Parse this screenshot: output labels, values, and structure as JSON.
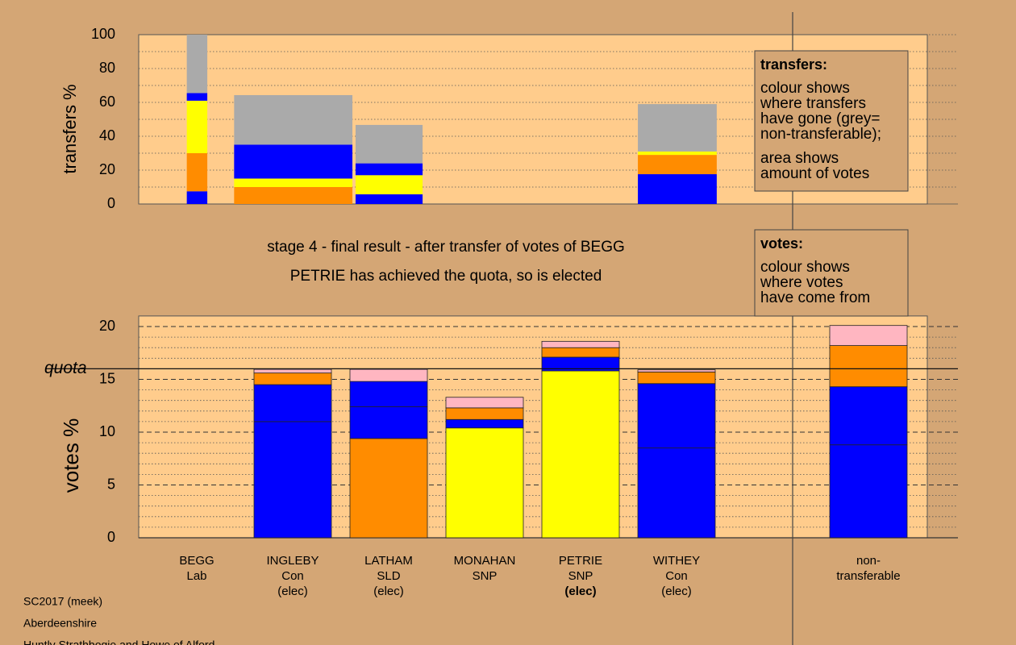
{
  "chart_data": [
    {
      "type": "variable-width-stacked-bar",
      "ylabel": "transfers %",
      "ylim": [
        0,
        100
      ],
      "yticks": [
        0,
        20,
        40,
        60,
        80,
        100
      ],
      "minor_yticks": [
        10,
        30,
        50,
        70,
        90
      ],
      "xlim": [
        0,
        100
      ],
      "bars": [
        {
          "x": [
            6.1,
            8.7
          ],
          "segments": [
            {
              "color": "#0000ff",
              "value": 7.5
            },
            {
              "color": "#ff8c00",
              "value": 22.5
            },
            {
              "color": "#ffff00",
              "value": 31
            },
            {
              "color": "#0000ff",
              "value": 4.5
            },
            {
              "color": "#aaaaaa",
              "value": 34.5
            }
          ]
        },
        {
          "x": [
            12.1,
            27.1
          ],
          "segments": [
            {
              "color": "#ff8c00",
              "value": 10
            },
            {
              "color": "#ffff00",
              "value": 5
            },
            {
              "color": "#0000ff",
              "value": 20
            },
            {
              "color": "#aaaaaa",
              "value": 29.3
            }
          ]
        },
        {
          "x": [
            27.5,
            36.0
          ],
          "segments": [
            {
              "color": "#0000ff",
              "value": 5.7
            },
            {
              "color": "#ffff00",
              "value": 11.3
            },
            {
              "color": "#0000ff",
              "value": 7
            },
            {
              "color": "#aaaaaa",
              "value": 22.7
            }
          ]
        },
        {
          "x": [
            63.3,
            73.3
          ],
          "segments": [
            {
              "color": "#0000ff",
              "value": 17.6
            },
            {
              "color": "#ff8c00",
              "value": 11.4
            },
            {
              "color": "#ffff00",
              "value": 2
            },
            {
              "color": "#aaaaaa",
              "value": 28
            }
          ]
        }
      ],
      "note": {
        "title": "transfers:",
        "paragraphs": [
          [
            "colour shows",
            "where transfers",
            "have gone (grey=",
            "non-transferable);"
          ],
          [
            "area shows",
            "amount of votes"
          ]
        ]
      }
    },
    {
      "type": "stacked-bar",
      "title": "stage 4 - final result - after transfer of votes of BEGG",
      "subtitle": "PETRIE has achieved the quota, so is elected",
      "ylabel": "votes %",
      "ylim": [
        0,
        21
      ],
      "yticks": [
        0,
        5,
        10,
        15,
        20
      ],
      "minor_yticks": [
        1,
        2,
        3,
        4,
        6,
        7,
        8,
        9,
        11,
        12,
        13,
        14,
        16,
        17,
        18,
        19
      ],
      "quota": 16.0,
      "quota_label": "quota",
      "categories": [
        {
          "lines": [
            "BEGG",
            "Lab"
          ]
        },
        {
          "lines": [
            "INGLEBY",
            "Con",
            "(elec)"
          ]
        },
        {
          "lines": [
            "LATHAM",
            "SLD",
            "(elec)"
          ]
        },
        {
          "lines": [
            "MONAHAN",
            "SNP"
          ]
        },
        {
          "lines": [
            "PETRIE",
            "SNP",
            "(elec)"
          ],
          "bold_line": 2
        },
        {
          "lines": [
            "WITHEY",
            "Con",
            "(elec)"
          ]
        },
        null,
        {
          "lines": [
            "non-",
            "transferable"
          ]
        }
      ],
      "bars": [
        {
          "segments": []
        },
        {
          "segments": [
            {
              "color": "#0000ff",
              "value": 11
            },
            {
              "color": "#0000ff",
              "value": 3.5
            },
            {
              "color": "#ff8c00",
              "value": 1.1
            },
            {
              "color": "#ffb6c1",
              "value": 0.35
            }
          ]
        },
        {
          "segments": [
            {
              "color": "#ff8c00",
              "value": 9.4
            },
            {
              "color": "#0000ff",
              "value": 3.0
            },
            {
              "color": "#0000ff",
              "value": 2.4
            },
            {
              "color": "#ffb6c1",
              "value": 1.15
            }
          ]
        },
        {
          "segments": [
            {
              "color": "#ffff00",
              "value": 10.4
            },
            {
              "color": "#0000ff",
              "value": 0.8
            },
            {
              "color": "#ff8c00",
              "value": 1.1
            },
            {
              "color": "#ffb6c1",
              "value": 1.0
            }
          ]
        },
        {
          "segments": [
            {
              "color": "#ffff00",
              "value": 15.8
            },
            {
              "color": "#0000ff",
              "value": 1.3
            },
            {
              "color": "#ff8c00",
              "value": 0.9
            },
            {
              "color": "#ffb6c1",
              "value": 0.6
            }
          ]
        },
        {
          "segments": [
            {
              "color": "#0000ff",
              "value": 8.5
            },
            {
              "color": "#0000ff",
              "value": 6.1
            },
            {
              "color": "#ff8c00",
              "value": 1.1
            },
            {
              "color": "#ffb6c1",
              "value": 0.2
            }
          ]
        },
        null,
        {
          "segments": [
            {
              "color": "#0000ff",
              "value": 8.8
            },
            {
              "color": "#0000ff",
              "value": 5.5
            },
            {
              "color": "#ff8c00",
              "value": 3.9
            },
            {
              "color": "#ffb6c1",
              "value": 1.9
            }
          ]
        }
      ],
      "note": {
        "title": "votes:",
        "paragraphs": [
          [
            "colour shows",
            "where votes",
            "have come from"
          ]
        ]
      }
    }
  ],
  "footer": [
    "SC2017 (meek)",
    "Aberdeenshire",
    "Huntly Strathbogie and Howe of Alford"
  ]
}
